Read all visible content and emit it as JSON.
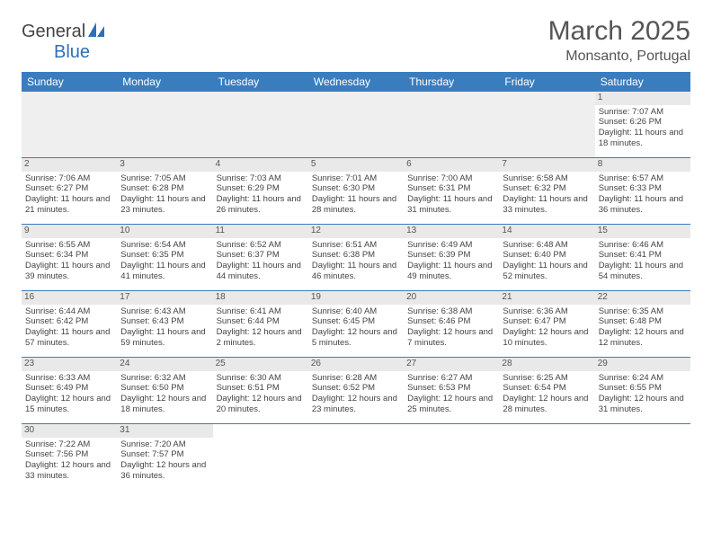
{
  "logo": {
    "text1": "General",
    "text2": "Blue"
  },
  "title": "March 2025",
  "location": "Monsanto, Portugal",
  "colors": {
    "header_bg": "#3a7dbf",
    "header_text": "#ffffff",
    "daynum_bg": "#e9e9e9",
    "border": "#3a7dbf",
    "title_color": "#555555",
    "logo_blue": "#2e6fb5"
  },
  "weekdays": [
    "Sunday",
    "Monday",
    "Tuesday",
    "Wednesday",
    "Thursday",
    "Friday",
    "Saturday"
  ],
  "weeks": [
    [
      null,
      null,
      null,
      null,
      null,
      null,
      {
        "d": "1",
        "sr": "Sunrise: 7:07 AM",
        "ss": "Sunset: 6:26 PM",
        "dl": "Daylight: 11 hours and 18 minutes."
      }
    ],
    [
      {
        "d": "2",
        "sr": "Sunrise: 7:06 AM",
        "ss": "Sunset: 6:27 PM",
        "dl": "Daylight: 11 hours and 21 minutes."
      },
      {
        "d": "3",
        "sr": "Sunrise: 7:05 AM",
        "ss": "Sunset: 6:28 PM",
        "dl": "Daylight: 11 hours and 23 minutes."
      },
      {
        "d": "4",
        "sr": "Sunrise: 7:03 AM",
        "ss": "Sunset: 6:29 PM",
        "dl": "Daylight: 11 hours and 26 minutes."
      },
      {
        "d": "5",
        "sr": "Sunrise: 7:01 AM",
        "ss": "Sunset: 6:30 PM",
        "dl": "Daylight: 11 hours and 28 minutes."
      },
      {
        "d": "6",
        "sr": "Sunrise: 7:00 AM",
        "ss": "Sunset: 6:31 PM",
        "dl": "Daylight: 11 hours and 31 minutes."
      },
      {
        "d": "7",
        "sr": "Sunrise: 6:58 AM",
        "ss": "Sunset: 6:32 PM",
        "dl": "Daylight: 11 hours and 33 minutes."
      },
      {
        "d": "8",
        "sr": "Sunrise: 6:57 AM",
        "ss": "Sunset: 6:33 PM",
        "dl": "Daylight: 11 hours and 36 minutes."
      }
    ],
    [
      {
        "d": "9",
        "sr": "Sunrise: 6:55 AM",
        "ss": "Sunset: 6:34 PM",
        "dl": "Daylight: 11 hours and 39 minutes."
      },
      {
        "d": "10",
        "sr": "Sunrise: 6:54 AM",
        "ss": "Sunset: 6:35 PM",
        "dl": "Daylight: 11 hours and 41 minutes."
      },
      {
        "d": "11",
        "sr": "Sunrise: 6:52 AM",
        "ss": "Sunset: 6:37 PM",
        "dl": "Daylight: 11 hours and 44 minutes."
      },
      {
        "d": "12",
        "sr": "Sunrise: 6:51 AM",
        "ss": "Sunset: 6:38 PM",
        "dl": "Daylight: 11 hours and 46 minutes."
      },
      {
        "d": "13",
        "sr": "Sunrise: 6:49 AM",
        "ss": "Sunset: 6:39 PM",
        "dl": "Daylight: 11 hours and 49 minutes."
      },
      {
        "d": "14",
        "sr": "Sunrise: 6:48 AM",
        "ss": "Sunset: 6:40 PM",
        "dl": "Daylight: 11 hours and 52 minutes."
      },
      {
        "d": "15",
        "sr": "Sunrise: 6:46 AM",
        "ss": "Sunset: 6:41 PM",
        "dl": "Daylight: 11 hours and 54 minutes."
      }
    ],
    [
      {
        "d": "16",
        "sr": "Sunrise: 6:44 AM",
        "ss": "Sunset: 6:42 PM",
        "dl": "Daylight: 11 hours and 57 minutes."
      },
      {
        "d": "17",
        "sr": "Sunrise: 6:43 AM",
        "ss": "Sunset: 6:43 PM",
        "dl": "Daylight: 11 hours and 59 minutes."
      },
      {
        "d": "18",
        "sr": "Sunrise: 6:41 AM",
        "ss": "Sunset: 6:44 PM",
        "dl": "Daylight: 12 hours and 2 minutes."
      },
      {
        "d": "19",
        "sr": "Sunrise: 6:40 AM",
        "ss": "Sunset: 6:45 PM",
        "dl": "Daylight: 12 hours and 5 minutes."
      },
      {
        "d": "20",
        "sr": "Sunrise: 6:38 AM",
        "ss": "Sunset: 6:46 PM",
        "dl": "Daylight: 12 hours and 7 minutes."
      },
      {
        "d": "21",
        "sr": "Sunrise: 6:36 AM",
        "ss": "Sunset: 6:47 PM",
        "dl": "Daylight: 12 hours and 10 minutes."
      },
      {
        "d": "22",
        "sr": "Sunrise: 6:35 AM",
        "ss": "Sunset: 6:48 PM",
        "dl": "Daylight: 12 hours and 12 minutes."
      }
    ],
    [
      {
        "d": "23",
        "sr": "Sunrise: 6:33 AM",
        "ss": "Sunset: 6:49 PM",
        "dl": "Daylight: 12 hours and 15 minutes."
      },
      {
        "d": "24",
        "sr": "Sunrise: 6:32 AM",
        "ss": "Sunset: 6:50 PM",
        "dl": "Daylight: 12 hours and 18 minutes."
      },
      {
        "d": "25",
        "sr": "Sunrise: 6:30 AM",
        "ss": "Sunset: 6:51 PM",
        "dl": "Daylight: 12 hours and 20 minutes."
      },
      {
        "d": "26",
        "sr": "Sunrise: 6:28 AM",
        "ss": "Sunset: 6:52 PM",
        "dl": "Daylight: 12 hours and 23 minutes."
      },
      {
        "d": "27",
        "sr": "Sunrise: 6:27 AM",
        "ss": "Sunset: 6:53 PM",
        "dl": "Daylight: 12 hours and 25 minutes."
      },
      {
        "d": "28",
        "sr": "Sunrise: 6:25 AM",
        "ss": "Sunset: 6:54 PM",
        "dl": "Daylight: 12 hours and 28 minutes."
      },
      {
        "d": "29",
        "sr": "Sunrise: 6:24 AM",
        "ss": "Sunset: 6:55 PM",
        "dl": "Daylight: 12 hours and 31 minutes."
      }
    ],
    [
      {
        "d": "30",
        "sr": "Sunrise: 7:22 AM",
        "ss": "Sunset: 7:56 PM",
        "dl": "Daylight: 12 hours and 33 minutes."
      },
      {
        "d": "31",
        "sr": "Sunrise: 7:20 AM",
        "ss": "Sunset: 7:57 PM",
        "dl": "Daylight: 12 hours and 36 minutes."
      },
      null,
      null,
      null,
      null,
      null
    ]
  ]
}
